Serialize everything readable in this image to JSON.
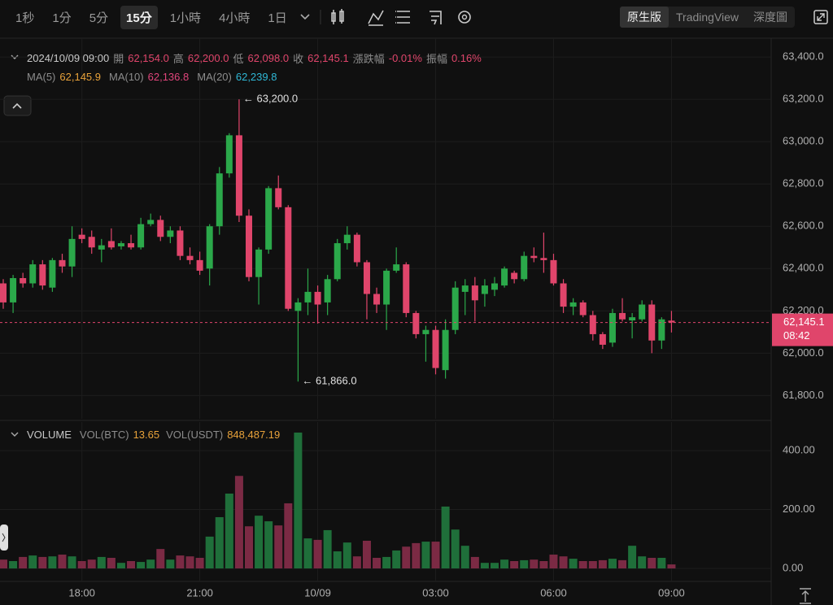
{
  "toolbar": {
    "intervals": [
      {
        "label": "1秒",
        "active": false
      },
      {
        "label": "1分",
        "active": false
      },
      {
        "label": "5分",
        "active": false
      },
      {
        "label": "15分",
        "active": true
      },
      {
        "label": "1小時",
        "active": false
      },
      {
        "label": "4小時",
        "active": false
      },
      {
        "label": "1日",
        "active": false
      }
    ],
    "views": [
      {
        "label": "原生版",
        "active": true
      },
      {
        "label": "TradingView",
        "active": false
      },
      {
        "label": "深度圖",
        "active": false
      }
    ]
  },
  "legend": {
    "date": "2024/10/09 09:00",
    "fields": [
      {
        "label": "開",
        "value": "62,154.0"
      },
      {
        "label": "高",
        "value": "62,200.0"
      },
      {
        "label": "低",
        "value": "62,098.0"
      },
      {
        "label": "收",
        "value": "62,145.1"
      },
      {
        "label": "漲跌幅",
        "value": "-0.01%"
      },
      {
        "label": "振幅",
        "value": "0.16%"
      }
    ],
    "ma": [
      {
        "label": "MA(5)",
        "value": "62,145.9",
        "color": "#e8a23a"
      },
      {
        "label": "MA(10)",
        "value": "62,136.8",
        "color": "#e0457b"
      },
      {
        "label": "MA(20)",
        "value": "62,239.8",
        "color": "#2fb8d6"
      }
    ]
  },
  "chart_data": [
    {
      "type": "candlestick",
      "categories": [
        null,
        null,
        null,
        null,
        null,
        null,
        null,
        null,
        "18:00",
        null,
        null,
        null,
        null,
        null,
        null,
        null,
        null,
        null,
        null,
        null,
        "21:00",
        null,
        null,
        null,
        null,
        null,
        null,
        null,
        null,
        null,
        null,
        null,
        "10/09",
        null,
        null,
        null,
        null,
        null,
        null,
        null,
        null,
        null,
        null,
        null,
        "03:00",
        null,
        null,
        null,
        null,
        null,
        null,
        null,
        null,
        null,
        null,
        null,
        "06:00",
        null,
        null,
        null,
        null,
        null,
        null,
        null,
        null,
        null,
        null,
        null,
        "09:00"
      ],
      "open": [
        62330,
        62240,
        62355,
        62330,
        62420,
        62310,
        62440,
        62410,
        62560,
        62550,
        62490,
        62530,
        62505,
        62520,
        62500,
        62610,
        62630,
        62550,
        62580,
        62460,
        62440,
        62400,
        62600,
        62850,
        63030,
        62650,
        62360,
        62490,
        62780,
        62690,
        62200,
        62240,
        62290,
        62240,
        62350,
        62520,
        62560,
        62430,
        62280,
        62230,
        62390,
        62420,
        62190,
        62090,
        62110,
        61920,
        62110,
        62290,
        62320,
        62280,
        62300,
        62320,
        62380,
        62350,
        62460,
        62450,
        62440,
        62330,
        62220,
        62240,
        62180,
        62090,
        62050,
        62190,
        62155,
        62160,
        62230,
        62060,
        62154
      ],
      "high": [
        62350,
        62370,
        62380,
        62440,
        62440,
        62450,
        62470,
        62600,
        62590,
        62580,
        62540,
        62590,
        62530,
        62560,
        62640,
        62660,
        62650,
        62600,
        62600,
        62500,
        62480,
        62610,
        62880,
        63040,
        63200,
        62680,
        62500,
        62790,
        62840,
        62700,
        62260,
        62400,
        62320,
        62370,
        62540,
        62600,
        62570,
        62440,
        62310,
        62400,
        62500,
        62430,
        62200,
        62130,
        62130,
        62160,
        62340,
        62350,
        62360,
        62350,
        62360,
        62410,
        62390,
        62480,
        62500,
        62570,
        62470,
        62350,
        62260,
        62250,
        62200,
        62100,
        62210,
        62260,
        62190,
        62250,
        62250,
        62170,
        62200
      ],
      "low": [
        62210,
        62190,
        62310,
        62310,
        62300,
        62290,
        62380,
        62360,
        62520,
        62470,
        62430,
        62490,
        62490,
        62490,
        62490,
        62600,
        62530,
        62520,
        62440,
        62420,
        62370,
        62320,
        62560,
        62830,
        62620,
        62340,
        62230,
        62470,
        62680,
        62200,
        61866,
        62180,
        62140,
        62180,
        62340,
        62490,
        62410,
        62160,
        62190,
        62110,
        62380,
        62170,
        62070,
        61960,
        61900,
        61880,
        62090,
        62180,
        62150,
        62220,
        62270,
        62310,
        62330,
        62340,
        62430,
        62380,
        62320,
        62190,
        62180,
        62170,
        62060,
        62020,
        62030,
        62150,
        62070,
        62150,
        62000,
        62020,
        62098
      ],
      "close": [
        62240,
        62355,
        62330,
        62420,
        62320,
        62440,
        62410,
        62540,
        62540,
        62500,
        62510,
        62500,
        62520,
        62500,
        62610,
        62630,
        62550,
        62580,
        62460,
        62440,
        62390,
        62600,
        62850,
        63030,
        62650,
        62360,
        62490,
        62780,
        62690,
        62210,
        62240,
        62290,
        62230,
        62350,
        62520,
        62560,
        62430,
        62280,
        62230,
        62390,
        62420,
        62190,
        62090,
        62110,
        61930,
        62110,
        62310,
        62320,
        62250,
        62320,
        62330,
        62400,
        62350,
        62460,
        62450,
        62440,
        62330,
        62220,
        62240,
        62180,
        62090,
        62040,
        62190,
        62160,
        62170,
        62230,
        62060,
        62160,
        62145.1
      ],
      "up_color": "#2ba84a",
      "down_color": "#e0456b",
      "ylim": [
        61690,
        63485
      ],
      "yticks": [
        {
          "value": 61800,
          "label": "61,800.0"
        },
        {
          "value": 62000,
          "label": "62,000.0"
        },
        {
          "value": 62200,
          "label": "62,200.0"
        },
        {
          "value": 62400,
          "label": "62,400.0"
        },
        {
          "value": 62600,
          "label": "62,600.0"
        },
        {
          "value": 62800,
          "label": "62,800.0"
        },
        {
          "value": 63000,
          "label": "63,000.0"
        },
        {
          "value": 63200,
          "label": "63,200.0"
        },
        {
          "value": 63400,
          "label": "63,400.0"
        }
      ],
      "grid": true,
      "annotations": [
        {
          "value": 63200,
          "label": "← 63,200.0"
        },
        {
          "value": 61866,
          "label": "← 61,866.0"
        }
      ],
      "last_price": {
        "value": 62145.1,
        "label": "62,145.1",
        "countdown": "08:42"
      }
    },
    {
      "type": "bar",
      "title": "VOLUME",
      "vol_btc_label": "VOL(BTC)",
      "vol_usdt_label": "VOL(USDT)",
      "vol_usdt_value": "848,487.19",
      "values": [
        30,
        25,
        39,
        44,
        39,
        41,
        47,
        41,
        25,
        30,
        39,
        36,
        19,
        25,
        22,
        30,
        66,
        30,
        44,
        41,
        36,
        108,
        174,
        254,
        314,
        143,
        179,
        160,
        146,
        221,
        461,
        102,
        97,
        130,
        58,
        88,
        41,
        94,
        36,
        39,
        61,
        74,
        86,
        91,
        91,
        210,
        132,
        77,
        39,
        19,
        19,
        30,
        25,
        28,
        30,
        25,
        47,
        41,
        33,
        25,
        25,
        28,
        33,
        28,
        77,
        41,
        36,
        36,
        13.65
      ],
      "up_color": "#1f6f3a",
      "down_color": "#7b2a44",
      "ylim": [
        -44,
        494
      ],
      "yticks": [
        {
          "value": 0,
          "label": "0.00"
        },
        {
          "value": 200,
          "label": "200.00"
        },
        {
          "value": 400,
          "label": "400.00"
        }
      ],
      "grid": true
    }
  ]
}
